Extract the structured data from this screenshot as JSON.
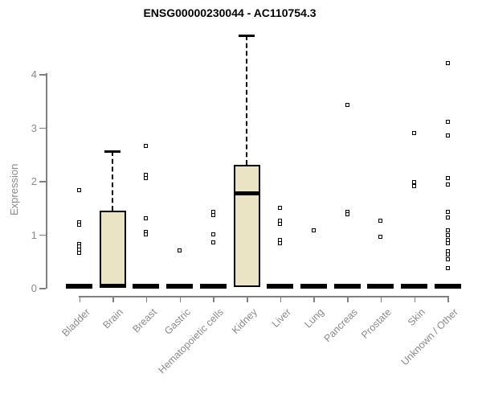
{
  "chart_data": {
    "type": "boxplot",
    "title": "ENSG00000230044 - AC110754.3",
    "ylabel": "Expression",
    "xlabel": "",
    "ylim": [
      0,
      4.8
    ],
    "yticks": [
      0,
      1,
      2,
      3,
      4
    ],
    "grid": false,
    "legend": false,
    "categories": [
      "Bladder",
      "Brain",
      "Breast",
      "Gastric",
      "Hematopoietic cells",
      "Kidney",
      "Liver",
      "Lung",
      "Pancreas",
      "Prostate",
      "Skin",
      "Unknown / Other"
    ],
    "boxes": [
      {
        "category": "Bladder",
        "q1": 0,
        "median": 0.03,
        "q3": 0.05,
        "whisker_low": 0,
        "whisker_high": 0.05,
        "outliers": [
          1.82,
          1.22,
          1.18,
          0.82,
          0.77,
          0.71,
          0.66
        ]
      },
      {
        "category": "Brain",
        "q1": 0.02,
        "median": 0.04,
        "q3": 1.45,
        "whisker_low": 0,
        "whisker_high": 2.55,
        "outliers": []
      },
      {
        "category": "Breast",
        "q1": 0,
        "median": 0.03,
        "q3": 0.05,
        "whisker_low": 0,
        "whisker_high": 0.05,
        "outliers": [
          2.65,
          2.12,
          2.06,
          1.3,
          1.05,
          1.0
        ]
      },
      {
        "category": "Gastric",
        "q1": 0,
        "median": 0.03,
        "q3": 0.05,
        "whisker_low": 0,
        "whisker_high": 0.05,
        "outliers": [
          0.7
        ]
      },
      {
        "category": "Hematopoietic cells",
        "q1": 0,
        "median": 0.03,
        "q3": 0.05,
        "whisker_low": 0,
        "whisker_high": 0.05,
        "outliers": [
          1.42,
          1.36,
          1.0,
          0.85
        ]
      },
      {
        "category": "Kidney",
        "q1": 0.02,
        "median": 1.77,
        "q3": 2.3,
        "whisker_low": 0,
        "whisker_high": 4.72,
        "outliers": []
      },
      {
        "category": "Liver",
        "q1": 0,
        "median": 0.03,
        "q3": 0.05,
        "whisker_low": 0,
        "whisker_high": 0.05,
        "outliers": [
          1.5,
          1.26,
          1.2,
          0.9,
          0.83
        ]
      },
      {
        "category": "Lung",
        "q1": 0,
        "median": 0.03,
        "q3": 0.05,
        "whisker_low": 0,
        "whisker_high": 0.05,
        "outliers": [
          1.08
        ]
      },
      {
        "category": "Pancreas",
        "q1": 0,
        "median": 0.03,
        "q3": 0.05,
        "whisker_low": 0,
        "whisker_high": 0.05,
        "outliers": [
          3.42,
          1.42,
          1.38
        ]
      },
      {
        "category": "Prostate",
        "q1": 0,
        "median": 0.03,
        "q3": 0.05,
        "whisker_low": 0,
        "whisker_high": 0.05,
        "outliers": [
          1.25,
          0.95
        ]
      },
      {
        "category": "Skin",
        "q1": 0,
        "median": 0.03,
        "q3": 0.05,
        "whisker_low": 0,
        "whisker_high": 0.05,
        "outliers": [
          2.9,
          1.97,
          1.9
        ]
      },
      {
        "category": "Unknown / Other",
        "q1": 0,
        "median": 0.03,
        "q3": 0.05,
        "whisker_low": 0,
        "whisker_high": 0.05,
        "outliers": [
          4.2,
          3.1,
          2.85,
          2.05,
          1.93,
          1.42,
          1.32,
          1.08,
          0.98,
          0.9,
          0.83,
          0.68,
          0.63,
          0.53,
          0.37
        ]
      }
    ],
    "colors": {
      "background": "#FFFFFF",
      "box_fill": "#EAE4C5",
      "box_border": "#000000",
      "median": "#000000",
      "outlier": "#000000",
      "axis": "#808080",
      "tick_label": "#8A8A8A",
      "title": "#000000"
    }
  }
}
